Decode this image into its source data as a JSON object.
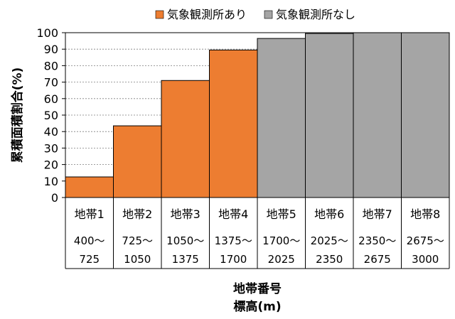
{
  "chart_data": {
    "type": "bar",
    "categories": [
      {
        "name": "地帯1",
        "range_from": "400～",
        "range_to": "725"
      },
      {
        "name": "地帯2",
        "range_from": "725～",
        "range_to": "1050"
      },
      {
        "name": "地帯3",
        "range_from": "1050～",
        "range_to": "1375"
      },
      {
        "name": "地帯4",
        "range_from": "1375～",
        "range_to": "1700"
      },
      {
        "name": "地帯5",
        "range_from": "1700～",
        "range_to": "2025"
      },
      {
        "name": "地帯6",
        "range_from": "2025～",
        "range_to": "2350"
      },
      {
        "name": "地帯7",
        "range_from": "2350～",
        "range_to": "2675"
      },
      {
        "name": "地帯8",
        "range_from": "2675～",
        "range_to": "3000"
      }
    ],
    "values": [
      12.5,
      43.5,
      71,
      89.5,
      96.5,
      99.5,
      100,
      100
    ],
    "bar_series": [
      0,
      0,
      0,
      0,
      1,
      1,
      1,
      1
    ],
    "series": [
      {
        "name": "気象観測所あり",
        "color": "#ED7D31"
      },
      {
        "name": "気象観測所なし",
        "color": "#A5A5A5"
      }
    ],
    "ylabel": "累積面積割合(%)",
    "xlabel_line1": "地帯番号",
    "xlabel_line2": "標高(m)",
    "ylim": [
      0,
      100
    ],
    "yticks": [
      0,
      10,
      20,
      30,
      40,
      50,
      60,
      70,
      80,
      90,
      100
    ],
    "grid": "horizontal-dashed",
    "legend_position": "top"
  }
}
